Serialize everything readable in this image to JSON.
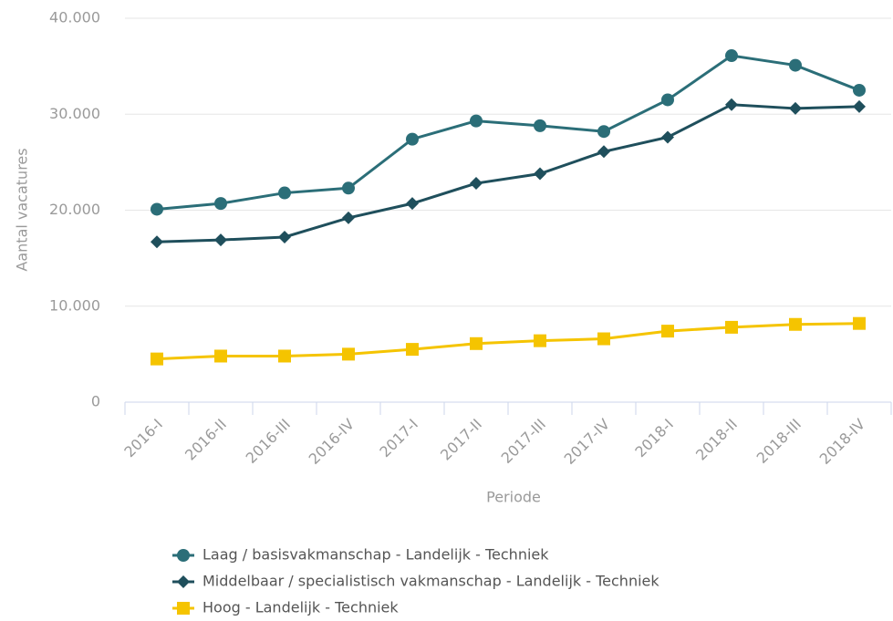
{
  "chart_data": {
    "type": "line",
    "x_label": "Periode",
    "y_label": "Aantal vacatures",
    "categories": [
      "2016-I",
      "2016-II",
      "2016-III",
      "2016-IV",
      "2017-I",
      "2017-II",
      "2017-III",
      "2017-IV",
      "2018-I",
      "2018-II",
      "2018-III",
      "2018-IV"
    ],
    "series": [
      {
        "name": "Laag / basisvakmanschap - Landelijk - Techniek",
        "color": "#2b6e78",
        "marker": "circle",
        "values": [
          20100,
          20700,
          21800,
          22300,
          27400,
          29300,
          28800,
          28200,
          31500,
          36100,
          35100,
          32500
        ]
      },
      {
        "name": "Middelbaar / specialistisch vakmanschap - Landelijk - Techniek",
        "color": "#1f4f5c",
        "marker": "diamond",
        "values": [
          16700,
          16900,
          17200,
          19200,
          20700,
          22800,
          23800,
          26100,
          27600,
          31000,
          30600,
          30800
        ]
      },
      {
        "name": "Hoog - Landelijk - Techniek",
        "color": "#f5c400",
        "marker": "square",
        "values": [
          4500,
          4800,
          4800,
          5000,
          5500,
          6100,
          6400,
          6600,
          7400,
          7800,
          8100,
          8200
        ]
      }
    ],
    "ylim": [
      0,
      40000
    ],
    "yticks": [
      0,
      {
        "value": 10000,
        "label": "10.000"
      },
      {
        "value": 20000,
        "label": "20.000"
      },
      {
        "value": 30000,
        "label": "30.000"
      },
      {
        "value": 40000,
        "label": "40.000"
      }
    ],
    "grid": true
  }
}
